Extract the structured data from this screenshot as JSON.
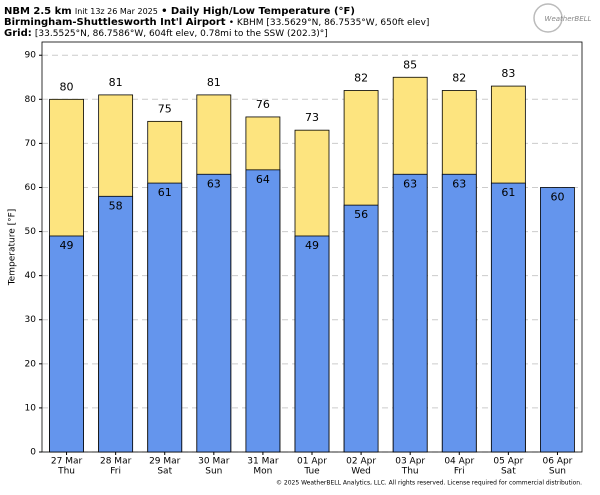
{
  "chart_data": {
    "type": "bar",
    "model": "NBM 2.5 km",
    "init": "Init 13z 26 Mar 2025",
    "title": "• Daily High/Low Temperature (°F)",
    "station": "Birmingham-Shuttlesworth Int'l Airport",
    "station_info": "• KBHM [33.5629°N, 86.7535°W, 650ft elev]",
    "grid_label": "Grid:",
    "grid_info": "[33.5525°N, 86.7586°W, 604ft elev, 0.78mi to the SSW (202.3)°]",
    "logo": "WeatherBELL",
    "footer": "© 2025 WeatherBELL Analytics, LLC. All rights reserved. License required for commercial distribution.",
    "ylabel": "Temperature [°F]",
    "categories": [
      "27 Mar",
      "28 Mar",
      "29 Mar",
      "30 Mar",
      "31 Mar",
      "01 Apr",
      "02 Apr",
      "03 Apr",
      "04 Apr",
      "05 Apr",
      "06 Apr"
    ],
    "weekdays": [
      "Thu",
      "Fri",
      "Sat",
      "Sun",
      "Mon",
      "Tue",
      "Wed",
      "Thu",
      "Fri",
      "Sat",
      "Sun"
    ],
    "series": [
      {
        "name": "High",
        "color": "#fde47f",
        "values": [
          80,
          81,
          75,
          81,
          76,
          73,
          82,
          85,
          82,
          83,
          null
        ]
      },
      {
        "name": "Low",
        "color": "#6495ed",
        "values": [
          49,
          58,
          61,
          63,
          64,
          49,
          56,
          63,
          63,
          61,
          60
        ]
      }
    ],
    "ylim": [
      0,
      93
    ],
    "yticks": [
      0,
      10,
      20,
      30,
      40,
      50,
      60,
      70,
      80,
      90
    ],
    "grid": true
  }
}
